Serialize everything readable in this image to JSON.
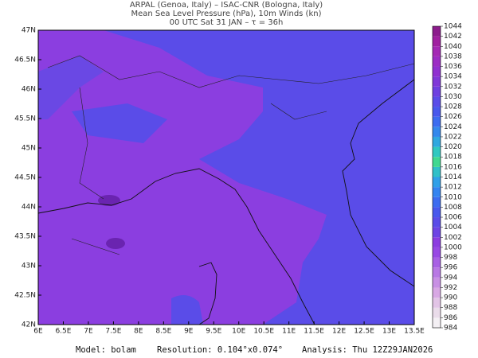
{
  "header": {
    "line1": "ARPAL (Genoa, Italy)  –  ISAC-CNR (Bologna, Italy)",
    "line2": "Mean Sea Level Pressure (hPa), 10m Winds (kn)",
    "line3": "00 UTC Sat 31 JAN  –  τ = 36h"
  },
  "map": {
    "lat_labels": [
      "47N",
      "46.5N",
      "46N",
      "45.5N",
      "45N",
      "44.5N",
      "44N",
      "43.5N",
      "43N",
      "42.5N",
      "42N"
    ],
    "lon_labels": [
      "6E",
      "6.5E",
      "7E",
      "7.5E",
      "8E",
      "8.5E",
      "9E",
      "9.5E",
      "10E",
      "10.5E",
      "11E",
      "11.5E",
      "12E",
      "12.5E",
      "13E",
      "13.5E"
    ]
  },
  "colorbar": {
    "levels": [
      984,
      986,
      988,
      990,
      992,
      994,
      996,
      998,
      1000,
      1002,
      1004,
      1006,
      1008,
      1010,
      1012,
      1014,
      1016,
      1018,
      1020,
      1022,
      1024,
      1026,
      1028,
      1030,
      1032,
      1034,
      1036,
      1038,
      1040,
      1042,
      1044
    ],
    "colors": [
      "#f4f0f4",
      "#eadcea",
      "#e2c4e6",
      "#d8a8e4",
      "#c890e4",
      "#b878e4",
      "#a860e4",
      "#9848e4",
      "#8c3ce0",
      "#6e44e4",
      "#5a4ce8",
      "#4858ec",
      "#3c6cf0",
      "#3484f0",
      "#30a0e8",
      "#30c0c8",
      "#40d890",
      "#30c8c0",
      "#30a8e0",
      "#3488ec",
      "#3c6cf0",
      "#4858ec",
      "#5a4ce8",
      "#6e40e0",
      "#8038d8",
      "#9030d0",
      "#9c2cc4",
      "#a428b4",
      "#a020a0",
      "#8c1c8c"
    ]
  },
  "footer": {
    "model": "Model: bolam",
    "resolution": "Resolution: 0.104°x0.074°",
    "analysis": "Analysis: Thu 12Z29JAN2026"
  }
}
